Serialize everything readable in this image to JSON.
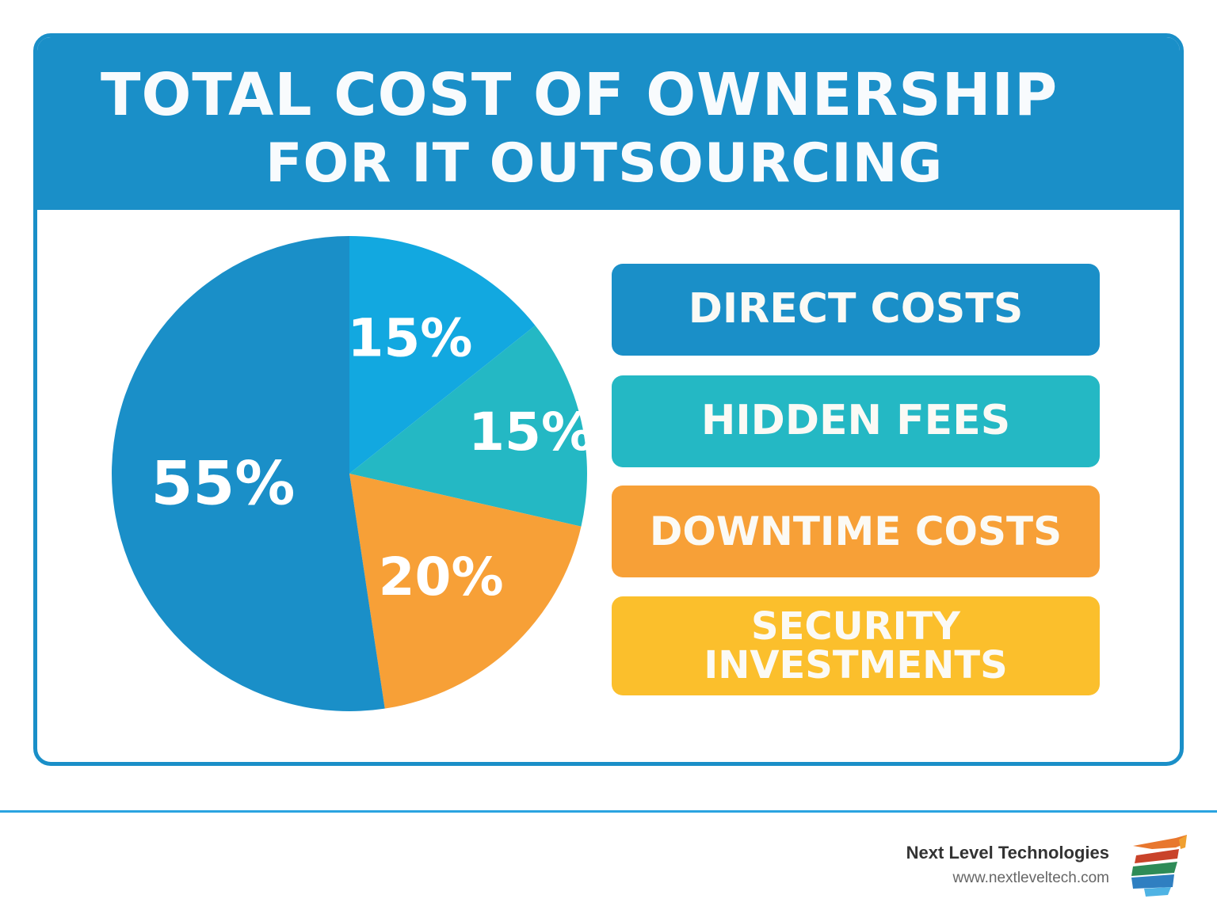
{
  "header": {
    "title_line1": "TOTAL COST OF OWNERSHIP",
    "title_line2": "FOR IT OUTSOURCING"
  },
  "colors": {
    "header_bg": "#1a8fc8",
    "direct_costs": "#1a8fc8",
    "hidden_fees": "#24b8c4",
    "downtime_costs": "#f7a037",
    "security_investments": "#fbbf2c",
    "extra_slice": "#12a8e0",
    "footer_rule": "#2aa3e0"
  },
  "chart_data": {
    "type": "pie",
    "slices": [
      {
        "label_text": "15%",
        "value": 15,
        "color": "#12a8e0"
      },
      {
        "label_text": "15%",
        "value": 15,
        "color": "#24b8c4"
      },
      {
        "label_text": "20%",
        "value": 20,
        "color": "#f7a037"
      },
      {
        "label_text": "55%",
        "value": 55,
        "color": "#1a8fc8"
      }
    ],
    "legend": [
      "DIRECT COSTS",
      "HIDDEN FEES",
      "DOWNTIME COSTS",
      "SECURITY INVESTMENTS"
    ]
  },
  "legend_items": [
    {
      "lines": [
        "DIRECT COSTS"
      ],
      "color": "#1a8fc8"
    },
    {
      "lines": [
        "HIDDEN FEES"
      ],
      "color": "#24b8c4"
    },
    {
      "lines": [
        "DOWNTIME COSTS"
      ],
      "color": "#f7a037"
    },
    {
      "lines": [
        "SECURITY",
        "INVESTMENTS"
      ],
      "color": "#fbbf2c"
    }
  ],
  "footer": {
    "company": "Next Level Technologies",
    "url": "www.nextleveltech.com"
  }
}
